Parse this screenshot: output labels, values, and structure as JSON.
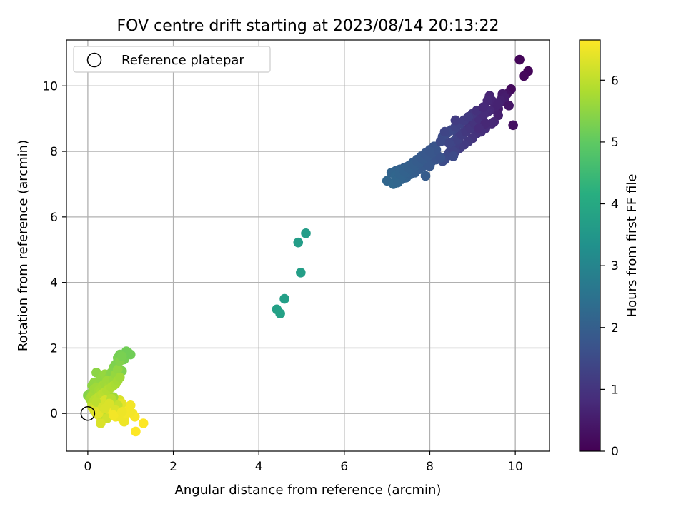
{
  "chart_data": {
    "type": "scatter",
    "title": "FOV centre drift starting at 2023/08/14 20:13:22",
    "xlabel": "Angular distance from reference (arcmin)",
    "ylabel": "Rotation from reference (arcmin)",
    "xlim": [
      -0.5,
      10.8
    ],
    "ylim": [
      -1.15,
      11.4
    ],
    "xticks": [
      0,
      2,
      4,
      6,
      8,
      10
    ],
    "yticks": [
      0,
      2,
      4,
      6,
      8,
      10
    ],
    "grid": true,
    "legend": {
      "placement": "top-left",
      "entries": [
        "Reference platepar"
      ]
    },
    "reference_point": {
      "x": 0,
      "y": 0,
      "label": "Reference platepar"
    },
    "colorbar": {
      "label": "Hours from first FF file",
      "range": [
        0,
        6.65
      ],
      "ticks": [
        0,
        1,
        2,
        3,
        4,
        5,
        6
      ],
      "colormap": "viridis"
    },
    "series": [
      {
        "x": [
          10.1,
          10.3,
          10.2,
          9.9,
          9.95,
          9.8,
          9.7,
          9.75,
          9.85,
          9.65,
          9.6,
          9.55,
          9.5,
          9.45,
          9.4,
          9.35,
          9.3,
          9.25,
          9.2,
          9.15,
          9.1,
          9.05,
          9.0,
          8.95,
          8.9,
          8.85,
          8.8,
          8.75,
          8.7,
          8.65,
          8.6,
          8.55,
          9.6,
          9.5,
          9.45,
          9.3,
          9.2,
          9.1,
          9.0,
          8.9,
          8.8,
          8.7,
          8.6,
          8.5,
          8.45,
          8.4,
          8.35,
          8.3,
          8.6,
          8.7,
          8.8,
          8.9,
          9.0,
          9.1,
          9.2,
          8.5,
          8.55,
          8.65,
          8.75,
          8.85,
          8.95,
          9.05,
          9.15,
          9.25,
          8.4,
          8.5,
          8.6,
          8.7,
          8.8,
          8.9,
          9.0,
          9.1,
          8.3,
          8.4,
          8.5,
          8.6,
          8.7,
          8.8,
          8.9,
          8.2,
          8.1,
          8.0,
          7.9,
          7.8,
          7.7,
          7.6,
          7.5,
          7.4,
          7.3,
          7.2,
          7.1,
          7.0,
          7.15,
          7.25,
          7.35,
          7.45,
          7.55,
          7.65,
          7.75,
          7.85,
          7.95,
          8.05,
          8.15,
          8.25,
          7.2,
          7.3,
          7.4,
          7.5,
          7.6,
          7.7,
          7.8,
          7.9,
          8.0,
          8.1,
          7.25,
          7.35,
          7.45,
          7.55,
          7.65,
          7.75,
          7.85,
          7.95,
          8.05,
          8.15,
          7.3,
          7.4,
          7.5,
          7.6,
          7.7,
          7.8,
          7.9,
          8.0,
          8.3,
          7.9,
          8.0,
          9.7,
          9.75,
          9.65,
          9.6,
          9.4,
          9.35,
          9.25,
          9.3,
          9.15,
          8.6,
          8.45,
          8.55,
          8.35,
          8.25
        ],
        "y": [
          10.8,
          10.45,
          10.3,
          9.9,
          8.8,
          9.75,
          9.7,
          9.6,
          9.4,
          9.5,
          9.3,
          9.45,
          9.3,
          9.55,
          9.25,
          9.2,
          9.3,
          9.1,
          9.0,
          9.15,
          8.9,
          8.95,
          8.85,
          8.75,
          8.7,
          8.65,
          8.6,
          8.55,
          8.45,
          8.5,
          8.35,
          8.3,
          9.1,
          8.9,
          8.85,
          8.7,
          8.6,
          8.55,
          8.4,
          8.3,
          8.2,
          8.1,
          8.0,
          8.05,
          7.95,
          7.85,
          7.75,
          7.7,
          8.2,
          8.45,
          8.55,
          8.7,
          8.8,
          8.95,
          9.05,
          8.25,
          8.0,
          8.35,
          8.5,
          8.6,
          8.7,
          8.85,
          9.0,
          9.15,
          8.55,
          8.65,
          8.75,
          8.85,
          8.95,
          9.05,
          9.15,
          9.25,
          8.45,
          8.55,
          8.65,
          8.75,
          8.85,
          8.95,
          9.05,
          7.85,
          7.9,
          7.8,
          7.75,
          7.7,
          7.65,
          7.6,
          7.55,
          7.5,
          7.45,
          7.4,
          7.35,
          7.1,
          7.0,
          7.05,
          7.15,
          7.2,
          7.3,
          7.35,
          7.45,
          7.55,
          7.6,
          7.7,
          7.75,
          7.8,
          7.25,
          7.35,
          7.45,
          7.55,
          7.65,
          7.75,
          7.85,
          7.95,
          8.05,
          8.15,
          7.15,
          7.25,
          7.35,
          7.45,
          7.55,
          7.65,
          7.75,
          7.85,
          7.95,
          8.05,
          7.3,
          7.4,
          7.5,
          7.6,
          7.7,
          7.8,
          7.9,
          8.0,
          8.4,
          7.25,
          7.55,
          9.75,
          9.65,
          9.55,
          9.45,
          9.7,
          9.55,
          9.35,
          8.85,
          8.7,
          8.95,
          8.25,
          7.85,
          8.6,
          8.3
        ],
        "hours": [
          0.1,
          0.1,
          0.15,
          0.2,
          0.3,
          0.35,
          0.4,
          0.45,
          0.4,
          0.5,
          0.55,
          0.6,
          0.65,
          0.7,
          0.75,
          0.8,
          0.85,
          0.9,
          0.95,
          1.0,
          1.0,
          1.05,
          1.1,
          1.1,
          1.15,
          1.2,
          1.25,
          1.3,
          1.35,
          1.4,
          1.45,
          1.5,
          0.6,
          0.7,
          0.75,
          0.85,
          0.9,
          0.95,
          1.0,
          1.1,
          1.15,
          1.2,
          1.3,
          1.35,
          1.4,
          1.45,
          1.5,
          1.55,
          1.25,
          1.2,
          1.1,
          1.0,
          0.95,
          0.9,
          0.8,
          1.4,
          1.35,
          1.3,
          1.2,
          1.1,
          1.05,
          1.0,
          0.9,
          0.85,
          1.45,
          1.4,
          1.3,
          1.25,
          1.15,
          1.1,
          1.05,
          0.95,
          1.55,
          1.5,
          1.45,
          1.35,
          1.3,
          1.2,
          1.15,
          1.6,
          1.65,
          1.7,
          1.75,
          1.8,
          1.85,
          1.9,
          1.95,
          2.0,
          2.05,
          2.1,
          2.15,
          2.2,
          2.25,
          2.2,
          2.15,
          2.1,
          2.05,
          2.0,
          1.95,
          1.9,
          1.85,
          1.8,
          1.75,
          1.7,
          2.2,
          2.15,
          2.1,
          2.05,
          2.0,
          1.95,
          1.9,
          1.85,
          1.8,
          1.75,
          2.2,
          2.15,
          2.1,
          2.05,
          2.0,
          1.95,
          1.9,
          1.85,
          1.8,
          1.75,
          2.15,
          2.1,
          2.05,
          2.0,
          1.95,
          1.9,
          1.85,
          1.8,
          1.55,
          1.95,
          1.85,
          0.5,
          0.55,
          0.6,
          0.65,
          0.7,
          0.75,
          0.8,
          0.75,
          0.85,
          1.2,
          1.4,
          1.5,
          1.4,
          1.5
        ]
      },
      {
        "x": [
          5.1,
          4.92,
          4.98,
          4.6,
          4.42,
          4.5
        ],
        "y": [
          5.5,
          5.22,
          4.3,
          3.5,
          3.18,
          3.05
        ],
        "hours": [
          3.7,
          3.7,
          3.72,
          3.75,
          3.78,
          3.8
        ]
      },
      {
        "x": [
          0.0,
          0.05,
          0.1,
          0.15,
          0.2,
          0.25,
          0.3,
          0.35,
          0.4,
          0.45,
          0.5,
          0.55,
          0.6,
          0.65,
          0.7,
          0.75,
          0.8,
          0.85,
          0.9,
          0.95,
          1.0,
          0.05,
          0.1,
          0.15,
          0.2,
          0.25,
          0.3,
          0.35,
          0.4,
          0.45,
          0.5,
          0.55,
          0.6,
          0.65,
          0.7,
          0.75,
          0.8,
          0.1,
          0.15,
          0.2,
          0.25,
          0.3,
          0.35,
          0.4,
          0.45,
          0.5,
          0.55,
          0.6,
          0.65,
          0.7,
          0.75,
          0.1,
          0.15,
          0.2,
          0.25,
          0.3,
          0.35,
          0.4,
          0.45,
          0.5,
          0.55,
          0.6,
          0.65,
          0.7,
          0.75,
          0.8,
          0.85,
          0.9,
          0.95,
          1.0,
          1.05,
          0.15,
          0.2,
          0.25,
          0.3,
          0.35,
          0.4,
          0.45,
          0.5,
          0.55,
          0.6,
          0.65,
          0.7,
          0.75,
          0.8,
          0.85,
          0.9,
          0.95,
          1.0,
          1.1,
          1.3,
          1.12,
          0.35,
          0.45,
          0.3,
          0.5,
          0.6,
          0.7,
          0.25,
          0.4,
          0.55,
          0.65,
          0.85,
          0.2,
          0.35,
          0.5,
          0.75,
          0.9,
          1.0,
          0.4,
          0.6,
          0.8
        ],
        "y": [
          0.55,
          0.6,
          0.85,
          0.95,
          1.25,
          0.9,
          1.05,
          1.15,
          1.2,
          0.95,
          1.1,
          1.25,
          1.4,
          1.5,
          1.7,
          1.8,
          1.3,
          1.65,
          1.9,
          1.85,
          1.8,
          0.45,
          0.55,
          0.75,
          0.8,
          0.7,
          0.65,
          0.85,
          0.9,
          1.0,
          0.85,
          0.95,
          1.05,
          1.2,
          1.35,
          1.6,
          1.75,
          0.3,
          0.4,
          0.45,
          0.5,
          0.55,
          0.6,
          0.65,
          0.7,
          0.75,
          0.8,
          0.85,
          0.9,
          1.0,
          1.1,
          0.2,
          0.15,
          0.25,
          0.3,
          0.2,
          0.35,
          0.4,
          0.3,
          0.25,
          0.35,
          0.15,
          0.2,
          0.1,
          0.05,
          0.0,
          0.1,
          0.15,
          0.2,
          0.05,
          0.0,
          0.1,
          0.0,
          -0.05,
          0.05,
          0.1,
          0.15,
          0.05,
          0.0,
          -0.05,
          0.05,
          -0.1,
          0.0,
          0.4,
          0.3,
          -0.2,
          0.0,
          0.1,
          0.25,
          -0.1,
          -0.3,
          -0.55,
          -0.1,
          -0.15,
          -0.3,
          0.3,
          0.5,
          0.25,
          0.0,
          0.2,
          0.45,
          0.1,
          -0.25,
          0.35,
          0.2,
          0.3,
          -0.1,
          0.0,
          0.05,
          0.15,
          -0.05,
          0.05
        ],
        "hours": [
          5.4,
          5.45,
          5.5,
          5.55,
          5.5,
          5.6,
          5.55,
          5.55,
          5.6,
          5.6,
          5.5,
          5.45,
          5.4,
          5.35,
          5.3,
          5.25,
          5.35,
          5.25,
          5.2,
          5.2,
          5.2,
          5.7,
          5.75,
          5.7,
          5.7,
          5.75,
          5.8,
          5.75,
          5.7,
          5.7,
          5.75,
          5.7,
          5.65,
          5.6,
          5.55,
          5.4,
          5.3,
          5.9,
          5.95,
          5.95,
          6.0,
          5.95,
          6.0,
          5.95,
          5.9,
          5.9,
          5.85,
          5.85,
          5.8,
          5.75,
          5.7,
          6.1,
          6.15,
          6.15,
          6.2,
          6.2,
          6.2,
          6.25,
          6.25,
          6.3,
          6.3,
          6.35,
          6.35,
          6.4,
          6.4,
          6.45,
          6.4,
          6.45,
          6.5,
          6.5,
          6.55,
          6.3,
          6.35,
          6.35,
          6.4,
          6.4,
          6.45,
          6.45,
          6.5,
          6.5,
          6.55,
          6.55,
          6.6,
          6.3,
          6.4,
          6.55,
          6.6,
          6.6,
          6.55,
          6.6,
          6.65,
          6.65,
          6.0,
          6.2,
          6.3,
          5.9,
          5.7,
          6.1,
          6.4,
          6.2,
          5.95,
          6.3,
          6.5,
          6.0,
          6.25,
          6.3,
          6.5,
          6.55,
          6.55,
          6.3,
          6.55,
          6.5
        ]
      }
    ]
  }
}
